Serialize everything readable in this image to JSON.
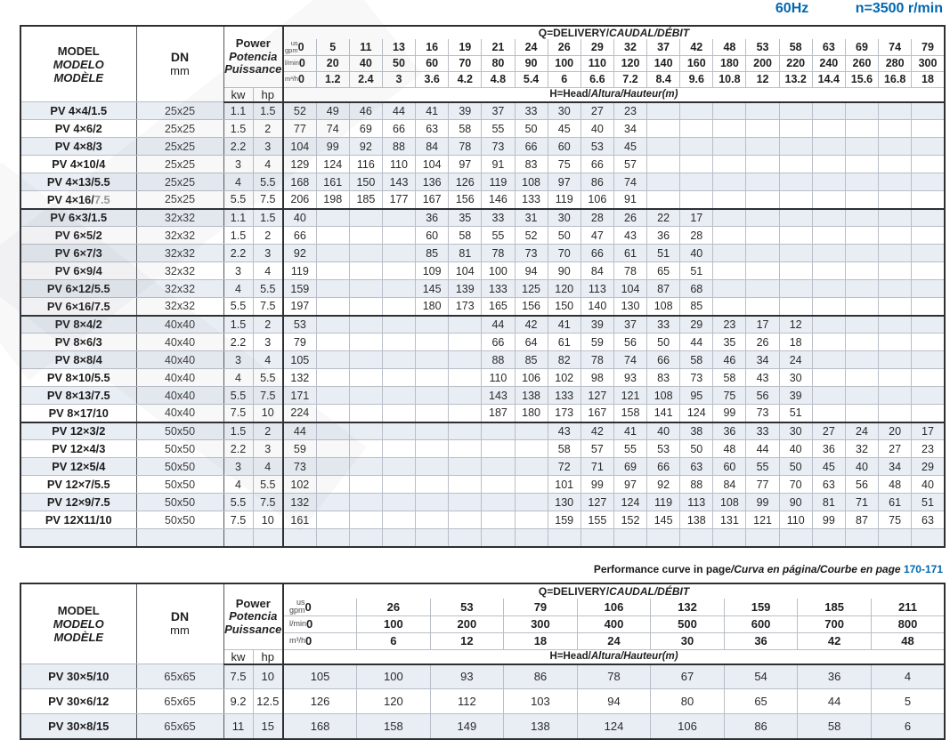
{
  "header": {
    "frequency": "60Hz",
    "speed": "n=3500 r/min"
  },
  "labels": {
    "model_lines": [
      "MODEL",
      "MODELO",
      "MODÈLE"
    ],
    "dn": "DN",
    "mm": "mm",
    "power_lines": [
      "Power",
      "Potencia",
      "Puissance"
    ],
    "kw": "kw",
    "hp": "hp",
    "q_delivery_roman": "Q=DELIVERY/",
    "q_delivery_italic": "CAUDAL/DÉBIT",
    "head_roman": "H=Head/",
    "head_italic": "Altura/Hauteur",
    "head_unit": "(m)",
    "unit_us": "us",
    "unit_gpm": "gpm",
    "unit_lmin": "l/min",
    "unit_m3h": "m³/h"
  },
  "note": {
    "bold": "Performance curve in page",
    "italic": "/Curva en página/Courbe en page",
    "pages": "170-171"
  },
  "table1": {
    "flow": {
      "gpm": [
        "0",
        "5",
        "11",
        "13",
        "16",
        "19",
        "21",
        "24",
        "26",
        "29",
        "32",
        "37",
        "42",
        "48",
        "53",
        "58",
        "63",
        "69",
        "74",
        "79"
      ],
      "lmin": [
        "0",
        "20",
        "40",
        "50",
        "60",
        "70",
        "80",
        "90",
        "100",
        "110",
        "120",
        "140",
        "160",
        "180",
        "200",
        "220",
        "240",
        "260",
        "280",
        "300"
      ],
      "m3h": [
        "0",
        "1.2",
        "2.4",
        "3",
        "3.6",
        "4.2",
        "4.8",
        "5.4",
        "6",
        "6.6",
        "7.2",
        "8.4",
        "9.6",
        "10.8",
        "12",
        "13.2",
        "14.4",
        "15.6",
        "16.8",
        "18"
      ]
    },
    "groups": [
      {
        "rows": [
          {
            "model": "PV 4×4/1.5",
            "dn": "25x25",
            "kw": "1.1",
            "hp": "1.5",
            "head": [
              "52",
              "49",
              "46",
              "44",
              "41",
              "39",
              "37",
              "33",
              "30",
              "27",
              "23",
              "",
              "",
              "",
              "",
              "",
              "",
              "",
              "",
              ""
            ]
          },
          {
            "model": "PV 4×6/2",
            "dn": "25x25",
            "kw": "1.5",
            "hp": "2",
            "head": [
              "77",
              "74",
              "69",
              "66",
              "63",
              "58",
              "55",
              "50",
              "45",
              "40",
              "34",
              "",
              "",
              "",
              "",
              "",
              "",
              "",
              "",
              ""
            ]
          },
          {
            "model": "PV 4×8/3",
            "dn": "25x25",
            "kw": "2.2",
            "hp": "3",
            "head": [
              "104",
              "99",
              "92",
              "88",
              "84",
              "78",
              "73",
              "66",
              "60",
              "53",
              "45",
              "",
              "",
              "",
              "",
              "",
              "",
              "",
              "",
              ""
            ]
          },
          {
            "model": "PV 4×10/4",
            "dn": "25x25",
            "kw": "3",
            "hp": "4",
            "head": [
              "129",
              "124",
              "116",
              "110",
              "104",
              "97",
              "91",
              "83",
              "75",
              "66",
              "57",
              "",
              "",
              "",
              "",
              "",
              "",
              "",
              "",
              ""
            ]
          },
          {
            "model": "PV 4×13/5.5",
            "dn": "25x25",
            "kw": "4",
            "hp": "5.5",
            "head": [
              "168",
              "161",
              "150",
              "143",
              "136",
              "126",
              "119",
              "108",
              "97",
              "86",
              "74",
              "",
              "",
              "",
              "",
              "",
              "",
              "",
              "",
              ""
            ]
          },
          {
            "model": "PV 4×16/",
            "model_gray": "7.5",
            "dn": "25x25",
            "kw": "5.5",
            "hp": "7.5",
            "head": [
              "206",
              "198",
              "185",
              "177",
              "167",
              "156",
              "146",
              "133",
              "119",
              "106",
              "91",
              "",
              "",
              "",
              "",
              "",
              "",
              "",
              "",
              ""
            ]
          }
        ]
      },
      {
        "rows": [
          {
            "model": "PV 6×3/1.5",
            "dn": "32x32",
            "kw": "1.1",
            "hp": "1.5",
            "head": [
              "40",
              "",
              "",
              "",
              "36",
              "35",
              "33",
              "31",
              "30",
              "28",
              "26",
              "22",
              "17",
              "",
              "",
              "",
              "",
              "",
              "",
              ""
            ]
          },
          {
            "model": "PV 6×5/2",
            "dn": "32x32",
            "kw": "1.5",
            "hp": "2",
            "head": [
              "66",
              "",
              "",
              "",
              "60",
              "58",
              "55",
              "52",
              "50",
              "47",
              "43",
              "36",
              "28",
              "",
              "",
              "",
              "",
              "",
              "",
              ""
            ]
          },
          {
            "model": "PV 6×7/3",
            "dn": "32x32",
            "kw": "2.2",
            "hp": "3",
            "head": [
              "92",
              "",
              "",
              "",
              "85",
              "81",
              "78",
              "73",
              "70",
              "66",
              "61",
              "51",
              "40",
              "",
              "",
              "",
              "",
              "",
              "",
              ""
            ]
          },
          {
            "model": "PV 6×9/4",
            "dn": "32x32",
            "kw": "3",
            "hp": "4",
            "head": [
              "119",
              "",
              "",
              "",
              "109",
              "104",
              "100",
              "94",
              "90",
              "84",
              "78",
              "65",
              "51",
              "",
              "",
              "",
              "",
              "",
              "",
              ""
            ]
          },
          {
            "model": "PV 6×12/5.5",
            "dn": "32x32",
            "kw": "4",
            "hp": "5.5",
            "head": [
              "159",
              "",
              "",
              "",
              "145",
              "139",
              "133",
              "125",
              "120",
              "113",
              "104",
              "87",
              "68",
              "",
              "",
              "",
              "",
              "",
              "",
              ""
            ]
          },
          {
            "model": "PV 6×16/7.5",
            "dn": "32x32",
            "kw": "5.5",
            "hp": "7.5",
            "head": [
              "197",
              "",
              "",
              "",
              "180",
              "173",
              "165",
              "156",
              "150",
              "140",
              "130",
              "108",
              "85",
              "",
              "",
              "",
              "",
              "",
              "",
              ""
            ]
          }
        ]
      },
      {
        "rows": [
          {
            "model": "PV 8×4/2",
            "dn": "40x40",
            "kw": "1.5",
            "hp": "2",
            "head": [
              "53",
              "",
              "",
              "",
              "",
              "",
              "44",
              "42",
              "41",
              "39",
              "37",
              "33",
              "29",
              "23",
              "17",
              "12",
              "",
              "",
              "",
              ""
            ]
          },
          {
            "model": "PV 8×6/3",
            "dn": "40x40",
            "kw": "2.2",
            "hp": "3",
            "head": [
              "79",
              "",
              "",
              "",
              "",
              "",
              "66",
              "64",
              "61",
              "59",
              "56",
              "50",
              "44",
              "35",
              "26",
              "18",
              "",
              "",
              "",
              ""
            ]
          },
          {
            "model": "PV 8×8/4",
            "dn": "40x40",
            "kw": "3",
            "hp": "4",
            "head": [
              "105",
              "",
              "",
              "",
              "",
              "",
              "88",
              "85",
              "82",
              "78",
              "74",
              "66",
              "58",
              "46",
              "34",
              "24",
              "",
              "",
              "",
              ""
            ]
          },
          {
            "model": "PV 8×10/5.5",
            "dn": "40x40",
            "kw": "4",
            "hp": "5.5",
            "head": [
              "132",
              "",
              "",
              "",
              "",
              "",
              "110",
              "106",
              "102",
              "98",
              "93",
              "83",
              "73",
              "58",
              "43",
              "30",
              "",
              "",
              "",
              ""
            ]
          },
          {
            "model": "PV 8×13/7.5",
            "dn": "40x40",
            "kw": "5.5",
            "hp": "7.5",
            "head": [
              "171",
              "",
              "",
              "",
              "",
              "",
              "143",
              "138",
              "133",
              "127",
              "121",
              "108",
              "95",
              "75",
              "56",
              "39",
              "",
              "",
              "",
              ""
            ]
          },
          {
            "model": "PV 8×17/10",
            "dn": "40x40",
            "kw": "7.5",
            "hp": "10",
            "head": [
              "224",
              "",
              "",
              "",
              "",
              "",
              "187",
              "180",
              "173",
              "167",
              "158",
              "141",
              "124",
              "99",
              "73",
              "51",
              "",
              "",
              "",
              ""
            ]
          }
        ]
      },
      {
        "rows": [
          {
            "model": "PV 12×3/2",
            "dn": "50x50",
            "kw": "1.5",
            "hp": "2",
            "head": [
              "44",
              "",
              "",
              "",
              "",
              "",
              "",
              "",
              "43",
              "42",
              "41",
              "40",
              "38",
              "36",
              "33",
              "30",
              "27",
              "24",
              "20",
              "17"
            ]
          },
          {
            "model": "PV 12×4/3",
            "dn": "50x50",
            "kw": "2.2",
            "hp": "3",
            "head": [
              "59",
              "",
              "",
              "",
              "",
              "",
              "",
              "",
              "58",
              "57",
              "55",
              "53",
              "50",
              "48",
              "44",
              "40",
              "36",
              "32",
              "27",
              "23"
            ]
          },
          {
            "model": "PV 12×5/4",
            "dn": "50x50",
            "kw": "3",
            "hp": "4",
            "head": [
              "73",
              "",
              "",
              "",
              "",
              "",
              "",
              "",
              "72",
              "71",
              "69",
              "66",
              "63",
              "60",
              "55",
              "50",
              "45",
              "40",
              "34",
              "29"
            ]
          },
          {
            "model": "PV 12×7/5.5",
            "dn": "50x50",
            "kw": "4",
            "hp": "5.5",
            "head": [
              "102",
              "",
              "",
              "",
              "",
              "",
              "",
              "",
              "101",
              "99",
              "97",
              "92",
              "88",
              "84",
              "77",
              "70",
              "63",
              "56",
              "48",
              "40"
            ]
          },
          {
            "model": "PV 12×9/7.5",
            "dn": "50x50",
            "kw": "5.5",
            "hp": "7.5",
            "head": [
              "132",
              "",
              "",
              "",
              "",
              "",
              "",
              "",
              "130",
              "127",
              "124",
              "119",
              "113",
              "108",
              "99",
              "90",
              "81",
              "71",
              "61",
              "51"
            ]
          },
          {
            "model": "PV 12X11/10",
            "dn": "50x50",
            "kw": "7.5",
            "hp": "10",
            "head": [
              "161",
              "",
              "",
              "",
              "",
              "",
              "",
              "",
              "159",
              "155",
              "152",
              "145",
              "138",
              "131",
              "121",
              "110",
              "99",
              "87",
              "75",
              "63"
            ]
          },
          {
            "empty": true
          }
        ]
      }
    ]
  },
  "table2": {
    "flow": {
      "gpm": [
        "0",
        "26",
        "53",
        "79",
        "106",
        "132",
        "159",
        "185",
        "211"
      ],
      "lmin": [
        "0",
        "100",
        "200",
        "300",
        "400",
        "500",
        "600",
        "700",
        "800"
      ],
      "m3h": [
        "0",
        "6",
        "12",
        "18",
        "24",
        "30",
        "36",
        "42",
        "48"
      ]
    },
    "groups": [
      {
        "rows": [
          {
            "model": "PV 30×5/10",
            "dn": "65x65",
            "kw": "7.5",
            "hp": "10",
            "head": [
              "105",
              "100",
              "93",
              "86",
              "78",
              "67",
              "54",
              "36",
              "4"
            ]
          },
          {
            "model": "PV 30×6/12",
            "dn": "65x65",
            "kw": "9.2",
            "hp": "12.5",
            "head": [
              "126",
              "120",
              "112",
              "103",
              "94",
              "80",
              "65",
              "44",
              "5"
            ]
          },
          {
            "model": "PV 30×8/15",
            "dn": "65x65",
            "kw": "11",
            "hp": "15",
            "head": [
              "168",
              "158",
              "149",
              "138",
              "124",
              "106",
              "86",
              "58",
              "6"
            ]
          }
        ]
      }
    ]
  }
}
